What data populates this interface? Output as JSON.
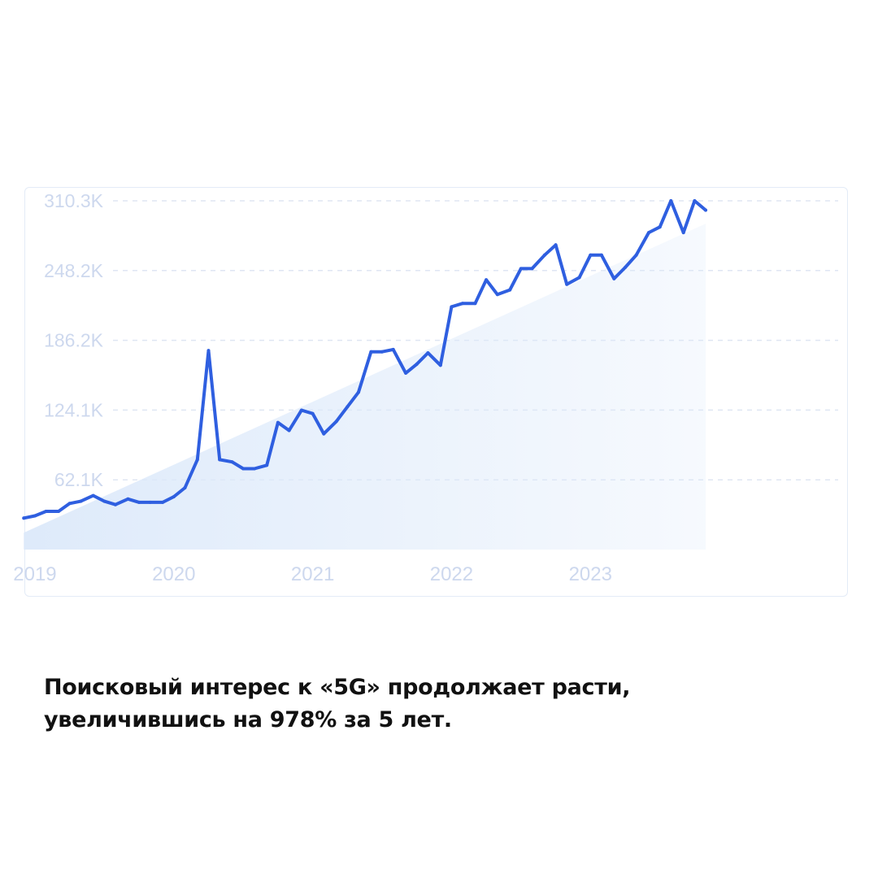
{
  "chart_data": {
    "type": "line",
    "title": "",
    "xlabel": "",
    "ylabel": "",
    "ylim": [
      0,
      310.3
    ],
    "y_ticks": [
      {
        "value": 62.06,
        "label": "62.1K"
      },
      {
        "value": 124.12,
        "label": "124.1K"
      },
      {
        "value": 186.18,
        "label": "186.2K"
      },
      {
        "value": 248.24,
        "label": "248.2K"
      },
      {
        "value": 310.3,
        "label": "310.3K"
      }
    ],
    "x_ticks": [
      {
        "value": 2019.0,
        "label": "2019"
      },
      {
        "value": 2020.0,
        "label": "2020"
      },
      {
        "value": 2021.0,
        "label": "2021"
      },
      {
        "value": 2022.0,
        "label": "2022"
      },
      {
        "value": 2023.0,
        "label": "2023"
      }
    ],
    "xlim": [
      2018.93,
      2024.86
    ],
    "grid": true,
    "legend": "none",
    "colors": {
      "line": "#2f5fe0",
      "trend_fill": "#dce9fa",
      "grid": "#dfe6f3",
      "tick_text": "#cdd8ee"
    },
    "series": [
      {
        "values": [
          [
            2018.92,
            28
          ],
          [
            2019.0,
            30
          ],
          [
            2019.08,
            34
          ],
          [
            2019.17,
            34
          ],
          [
            2019.25,
            41
          ],
          [
            2019.33,
            43
          ],
          [
            2019.42,
            48
          ],
          [
            2019.5,
            43
          ],
          [
            2019.58,
            40
          ],
          [
            2019.67,
            45
          ],
          [
            2019.75,
            42
          ],
          [
            2019.83,
            42
          ],
          [
            2019.92,
            42
          ],
          [
            2020.0,
            47
          ],
          [
            2020.08,
            55
          ],
          [
            2020.17,
            80
          ],
          [
            2020.25,
            177
          ],
          [
            2020.33,
            80
          ],
          [
            2020.42,
            78
          ],
          [
            2020.5,
            72
          ],
          [
            2020.58,
            72
          ],
          [
            2020.67,
            75
          ],
          [
            2020.75,
            113
          ],
          [
            2020.83,
            106
          ],
          [
            2020.92,
            124
          ],
          [
            2021.0,
            121
          ],
          [
            2021.08,
            103
          ],
          [
            2021.17,
            114
          ],
          [
            2021.25,
            127
          ],
          [
            2021.33,
            140
          ],
          [
            2021.42,
            176
          ],
          [
            2021.5,
            176
          ],
          [
            2021.58,
            178
          ],
          [
            2021.67,
            157
          ],
          [
            2021.75,
            165
          ],
          [
            2021.83,
            175
          ],
          [
            2021.92,
            164
          ],
          [
            2022.0,
            216
          ],
          [
            2022.08,
            219
          ],
          [
            2022.17,
            219
          ],
          [
            2022.25,
            240
          ],
          [
            2022.33,
            227
          ],
          [
            2022.42,
            231
          ],
          [
            2022.5,
            250
          ],
          [
            2022.58,
            250
          ],
          [
            2022.67,
            262
          ],
          [
            2022.75,
            271
          ],
          [
            2022.83,
            236
          ],
          [
            2022.92,
            242
          ],
          [
            2023.0,
            262
          ],
          [
            2023.08,
            262
          ],
          [
            2023.17,
            241
          ],
          [
            2023.25,
            251
          ],
          [
            2023.33,
            262
          ],
          [
            2023.42,
            282
          ],
          [
            2023.5,
            287
          ],
          [
            2023.58,
            310.3
          ],
          [
            2023.67,
            282
          ],
          [
            2023.75,
            310.3
          ],
          [
            2023.83,
            302
          ]
        ]
      }
    ],
    "trend": {
      "start": [
        2018.92,
        15
      ],
      "end": [
        2023.83,
        290
      ]
    }
  },
  "caption": {
    "line1": "Поисковый интерес к «5G» продолжает расти,",
    "line2": "увеличившись на 978% за 5 лет."
  }
}
